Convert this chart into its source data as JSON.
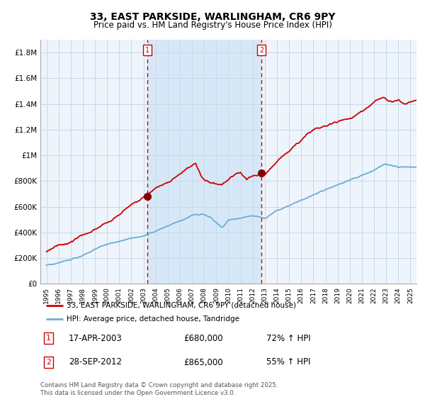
{
  "title": "33, EAST PARKSIDE, WARLINGHAM, CR6 9PY",
  "subtitle": "Price paid vs. HM Land Registry's House Price Index (HPI)",
  "title_fontsize": 10,
  "subtitle_fontsize": 8.5,
  "background_color": "#ffffff",
  "plot_bg_color": "#eef4fb",
  "highlight_bg_color": "#d6e8f7",
  "grid_color": "#c8d8e8",
  "red_color": "#cc0000",
  "blue_color": "#6aadd5",
  "vline_color": "#cc0000",
  "sale1_x": 2003.29,
  "sale2_x": 2012.74,
  "legend1": "33, EAST PARKSIDE, WARLINGHAM, CR6 9PY (detached house)",
  "legend2": "HPI: Average price, detached house, Tandridge",
  "annotation1_date": "17-APR-2003",
  "annotation1_price": "£680,000",
  "annotation1_hpi": "72% ↑ HPI",
  "annotation2_date": "28-SEP-2012",
  "annotation2_price": "£865,000",
  "annotation2_hpi": "55% ↑ HPI",
  "footer": "Contains HM Land Registry data © Crown copyright and database right 2025.\nThis data is licensed under the Open Government Licence v3.0.",
  "ylim": [
    0,
    1900000
  ],
  "yticks": [
    0,
    200000,
    400000,
    600000,
    800000,
    1000000,
    1200000,
    1400000,
    1600000,
    1800000
  ],
  "ytick_labels": [
    "£0",
    "£200K",
    "£400K",
    "£600K",
    "£800K",
    "£1M",
    "£1.2M",
    "£1.4M",
    "£1.6M",
    "£1.8M"
  ],
  "xlim_start": 1994.5,
  "xlim_end": 2025.5
}
